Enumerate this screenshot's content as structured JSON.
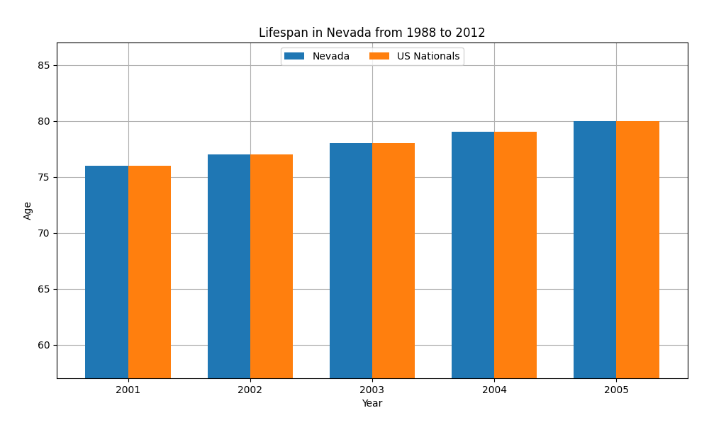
{
  "chart_data": {
    "type": "bar",
    "title": "Lifespan in Nevada from 1988 to 2012",
    "x_label": "Year",
    "y_label": "Age",
    "categories": [
      "2001",
      "2002",
      "2003",
      "2004",
      "2005"
    ],
    "series": [
      {
        "name": "Nevada",
        "values": [
          76,
          77,
          78,
          79,
          80
        ]
      },
      {
        "name": "US Nationals",
        "values": [
          76,
          77,
          78,
          79,
          80
        ]
      }
    ],
    "ylim": [
      57,
      87
    ],
    "yticks": [
      60,
      65,
      70,
      75,
      80,
      85
    ],
    "grid": true,
    "legend": "upper center"
  }
}
